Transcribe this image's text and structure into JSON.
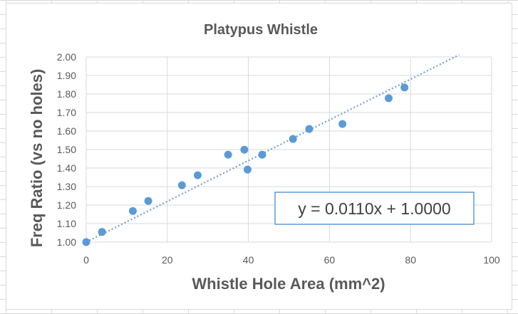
{
  "chart_data": {
    "type": "scatter",
    "title": "Platypus Whistle",
    "xlabel": "Whistle Hole Area (mm^2)",
    "ylabel": "Freq Ratio (vs no holes)",
    "xlim": [
      0,
      100
    ],
    "ylim": [
      1.0,
      2.0
    ],
    "x_ticks": [
      "0",
      "20",
      "40",
      "60",
      "80",
      "100"
    ],
    "y_ticks": [
      "1.00",
      "1.10",
      "1.20",
      "1.30",
      "1.40",
      "1.50",
      "1.60",
      "1.70",
      "1.80",
      "1.90",
      "2.00"
    ],
    "grid": true,
    "series": [
      {
        "color": "#5b9bd5",
        "points": [
          {
            "x": 0,
            "y": 1.0
          },
          {
            "x": 3.9,
            "y": 1.055
          },
          {
            "x": 11.5,
            "y": 1.168
          },
          {
            "x": 15.3,
            "y": 1.222
          },
          {
            "x": 23.6,
            "y": 1.307
          },
          {
            "x": 27.5,
            "y": 1.361
          },
          {
            "x": 35.0,
            "y": 1.472
          },
          {
            "x": 39.0,
            "y": 1.499
          },
          {
            "x": 39.8,
            "y": 1.392
          },
          {
            "x": 43.4,
            "y": 1.472
          },
          {
            "x": 51.0,
            "y": 1.557
          },
          {
            "x": 55.0,
            "y": 1.611
          },
          {
            "x": 63.2,
            "y": 1.638
          },
          {
            "x": 74.6,
            "y": 1.777
          },
          {
            "x": 78.5,
            "y": 1.835
          }
        ]
      }
    ],
    "trendline": {
      "type": "linear",
      "slope": 0.011,
      "intercept": 1.0,
      "x_range": [
        0,
        92
      ],
      "style": "dotted",
      "color": "#5b9bd5",
      "equation_label": "y = 0.0110x + 1.0000"
    }
  }
}
